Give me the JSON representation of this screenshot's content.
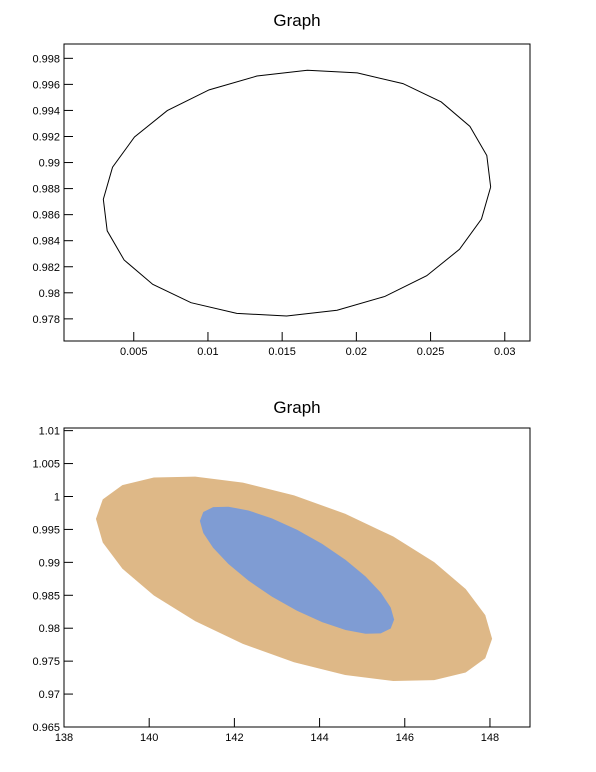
{
  "chart_data": [
    {
      "type": "line",
      "title": "Graph",
      "x": [
        0.02905,
        0.02879,
        0.02765,
        0.02572,
        0.02314,
        0.02006,
        0.0167,
        0.0133,
        0.01008,
        0.00726,
        0.00505,
        0.00357,
        0.00295,
        0.00321,
        0.00435,
        0.00628,
        0.00886,
        0.01194,
        0.0153,
        0.0187,
        0.02192,
        0.02474,
        0.02695,
        0.02843,
        0.02905
      ],
      "series": [
        {
          "color": "#000000",
          "values": [
            0.98812,
            0.99054,
            0.99278,
            0.99465,
            0.99606,
            0.99688,
            0.99708,
            0.99664,
            0.99558,
            0.99399,
            0.99196,
            0.98964,
            0.98718,
            0.98476,
            0.98252,
            0.98065,
            0.97924,
            0.97842,
            0.97822,
            0.97866,
            0.97972,
            0.98131,
            0.98334,
            0.98566,
            0.98812
          ]
        }
      ],
      "xlim": [
        0.0003,
        0.0317
      ],
      "ylim": [
        0.9763,
        0.9991
      ],
      "xticks": [
        0.005,
        0.01,
        0.015,
        0.02,
        0.025,
        0.03
      ],
      "yticks": [
        0.978,
        0.98,
        0.982,
        0.984,
        0.986,
        0.988,
        0.99,
        0.992,
        0.994,
        0.996,
        0.998
      ]
    },
    {
      "type": "area",
      "title": "Graph",
      "series": [
        {
          "color": "#deb887",
          "x": [
            148.05,
            147.89,
            147.43,
            146.69,
            145.73,
            144.6,
            143.4,
            142.2,
            141.08,
            140.11,
            139.37,
            138.91,
            138.75,
            138.91,
            139.37,
            140.11,
            141.08,
            142.2,
            143.4,
            144.6,
            145.73,
            146.69,
            147.43,
            147.89
          ],
          "values": [
            0.9784,
            0.98199,
            0.98596,
            0.99003,
            0.99392,
            0.99738,
            1.00017,
            1.0021,
            1.00302,
            1.00289,
            1.00172,
            0.99957,
            0.9966,
            0.99301,
            0.98904,
            0.98497,
            0.98108,
            0.97762,
            0.97483,
            0.9729,
            0.97198,
            0.97211,
            0.97328,
            0.97543
          ]
        },
        {
          "color": "#7f9cd3",
          "x": [
            145.75,
            145.67,
            145.44,
            145.08,
            144.61,
            144.06,
            143.47,
            142.88,
            142.33,
            141.86,
            141.5,
            141.27,
            141.19,
            141.27,
            141.5,
            141.86,
            142.33,
            142.88,
            143.47,
            144.06,
            144.61,
            145.08,
            145.44,
            145.67
          ],
          "values": [
            0.9813,
            0.98314,
            0.98538,
            0.98785,
            0.99038,
            0.9928,
            0.99495,
            0.99668,
            0.99788,
            0.99845,
            0.99838,
            0.99764,
            0.9963,
            0.99446,
            0.99222,
            0.98975,
            0.98722,
            0.9848,
            0.98265,
            0.98092,
            0.97972,
            0.97915,
            0.97922,
            0.97996
          ]
        }
      ],
      "xlim": [
        138,
        148.94
      ],
      "ylim": [
        0.965,
        1.0104
      ],
      "xticks": [
        138,
        140,
        142,
        144,
        146,
        148
      ],
      "yticks": [
        0.965,
        0.97,
        0.975,
        0.98,
        0.985,
        0.99,
        0.995,
        1,
        1.005,
        1.01
      ]
    }
  ]
}
